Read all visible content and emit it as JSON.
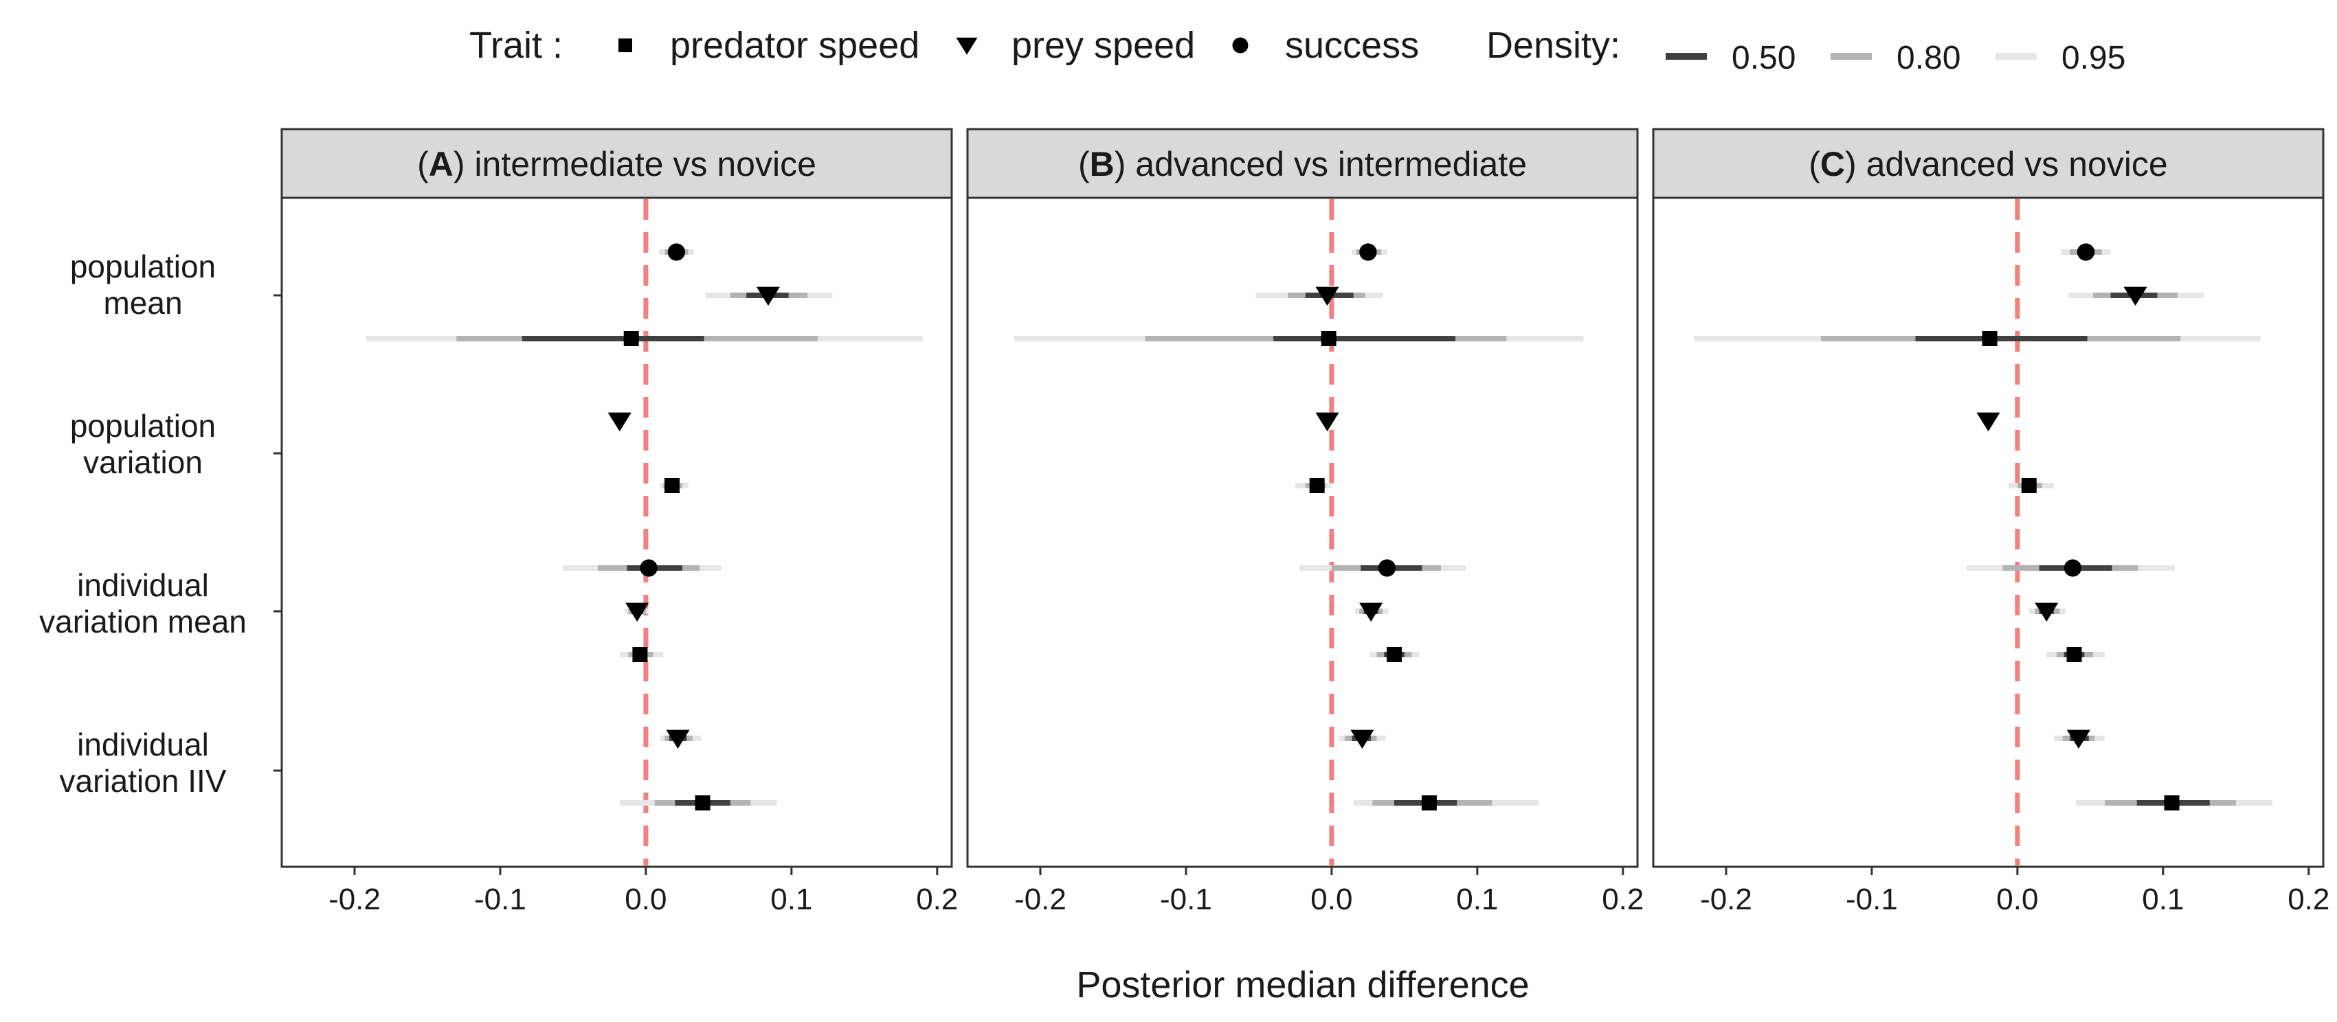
{
  "legend": {
    "trait_title": "Trait :",
    "density_title": "Density:",
    "traits": [
      {
        "key": "predator",
        "label": "predator speed",
        "shape": "square"
      },
      {
        "key": "prey",
        "label": "prey speed",
        "shape": "triangle-down"
      },
      {
        "key": "success",
        "label": "success",
        "shape": "circle"
      }
    ],
    "densities": [
      {
        "label": "0.50",
        "color": "#404040"
      },
      {
        "label": "0.80",
        "color": "#b3b3b3"
      },
      {
        "label": "0.95",
        "color": "#e6e6e6"
      }
    ]
  },
  "colors": {
    "zero_line": "#f28080",
    "strip_bg": "#d9d9d9",
    "point": "#000000"
  },
  "chart_data": {
    "type": "forest",
    "xlabel": "Posterior median difference",
    "xlim": [
      -0.25,
      0.21
    ],
    "xticks": [
      -0.2,
      -0.1,
      0.0,
      0.1,
      0.2
    ],
    "xtick_labels": [
      "-0.2",
      "-0.1",
      "0.0",
      "0.1",
      "0.2"
    ],
    "reference_line": 0,
    "groups": [
      {
        "key": "pop_mean",
        "label": [
          "population",
          "mean"
        ]
      },
      {
        "key": "pop_var",
        "label": [
          "population",
          "variation"
        ]
      },
      {
        "key": "ind_mean",
        "label": [
          "individual",
          "variation mean"
        ]
      },
      {
        "key": "ind_iiv",
        "label": [
          "individual",
          "variation IIV"
        ]
      }
    ],
    "panels": [
      {
        "id": "A",
        "title_letter": "A",
        "title_text": "intermediate vs novice",
        "estimates": [
          {
            "group": "pop_mean",
            "trait": "success",
            "median": 0.021,
            "i50": [
              0.016,
              0.026
            ],
            "i80": [
              0.013,
              0.029
            ],
            "i95": [
              0.009,
              0.033
            ]
          },
          {
            "group": "pop_mean",
            "trait": "prey",
            "median": 0.084,
            "i50": [
              0.069,
              0.098
            ],
            "i80": [
              0.058,
              0.111
            ],
            "i95": [
              0.041,
              0.128
            ]
          },
          {
            "group": "pop_mean",
            "trait": "predator",
            "median": -0.01,
            "i50": [
              -0.085,
              0.04
            ],
            "i80": [
              -0.13,
              0.118
            ],
            "i95": [
              -0.192,
              0.19
            ]
          },
          {
            "group": "pop_var",
            "trait": "prey",
            "median": -0.018
          },
          {
            "group": "pop_var",
            "trait": "predator",
            "median": 0.018,
            "i50": [
              0.014,
              0.022
            ],
            "i80": [
              0.012,
              0.025
            ],
            "i95": [
              0.01,
              0.029
            ]
          },
          {
            "group": "ind_mean",
            "trait": "success",
            "median": 0.002,
            "i50": [
              -0.013,
              0.025
            ],
            "i80": [
              -0.033,
              0.037
            ],
            "i95": [
              -0.057,
              0.052
            ]
          },
          {
            "group": "ind_mean",
            "trait": "prey",
            "median": -0.006,
            "i50": [
              -0.01,
              -0.002
            ],
            "i80": [
              -0.012,
              0.0
            ],
            "i95": [
              -0.014,
              0.002
            ]
          },
          {
            "group": "ind_mean",
            "trait": "predator",
            "median": -0.004,
            "i50": [
              -0.008,
              0.001
            ],
            "i80": [
              -0.012,
              0.005
            ],
            "i95": [
              -0.018,
              0.012
            ]
          },
          {
            "group": "ind_iiv",
            "trait": "prey",
            "median": 0.022,
            "i50": [
              0.016,
              0.028
            ],
            "i80": [
              0.013,
              0.032
            ],
            "i95": [
              0.01,
              0.038
            ]
          },
          {
            "group": "ind_iiv",
            "trait": "predator",
            "median": 0.039,
            "i50": [
              0.02,
              0.058
            ],
            "i80": [
              0.006,
              0.072
            ],
            "i95": [
              -0.018,
              0.09
            ]
          }
        ]
      },
      {
        "id": "B",
        "title_letter": "B",
        "title_text": "advanced vs intermediate",
        "estimates": [
          {
            "group": "pop_mean",
            "trait": "success",
            "median": 0.025,
            "i50": [
              0.02,
              0.03
            ],
            "i80": [
              0.017,
              0.034
            ],
            "i95": [
              0.014,
              0.038
            ]
          },
          {
            "group": "pop_mean",
            "trait": "prey",
            "median": -0.003,
            "i50": [
              -0.018,
              0.015
            ],
            "i80": [
              -0.03,
              0.023
            ],
            "i95": [
              -0.052,
              0.035
            ]
          },
          {
            "group": "pop_mean",
            "trait": "predator",
            "median": -0.002,
            "i50": [
              -0.04,
              0.085
            ],
            "i80": [
              -0.128,
              0.12
            ],
            "i95": [
              -0.218,
              0.173
            ]
          },
          {
            "group": "pop_var",
            "trait": "prey",
            "median": -0.003
          },
          {
            "group": "pop_var",
            "trait": "predator",
            "median": -0.01,
            "i50": [
              -0.014,
              -0.006
            ],
            "i80": [
              -0.018,
              -0.004
            ],
            "i95": [
              -0.025,
              0.0
            ]
          },
          {
            "group": "ind_mean",
            "trait": "success",
            "median": 0.038,
            "i50": [
              0.02,
              0.062
            ],
            "i80": [
              0.0,
              0.075
            ],
            "i95": [
              -0.022,
              0.092
            ]
          },
          {
            "group": "ind_mean",
            "trait": "prey",
            "median": 0.027,
            "i50": [
              0.022,
              0.032
            ],
            "i80": [
              0.019,
              0.035
            ],
            "i95": [
              0.016,
              0.039
            ]
          },
          {
            "group": "ind_mean",
            "trait": "predator",
            "median": 0.043,
            "i50": [
              0.036,
              0.05
            ],
            "i80": [
              0.031,
              0.055
            ],
            "i95": [
              0.026,
              0.06
            ]
          },
          {
            "group": "ind_iiv",
            "trait": "prey",
            "median": 0.021,
            "i50": [
              0.014,
              0.027
            ],
            "i80": [
              0.009,
              0.031
            ],
            "i95": [
              0.005,
              0.037
            ]
          },
          {
            "group": "ind_iiv",
            "trait": "predator",
            "median": 0.067,
            "i50": [
              0.043,
              0.086
            ],
            "i80": [
              0.028,
              0.11
            ],
            "i95": [
              0.015,
              0.142
            ]
          }
        ]
      },
      {
        "id": "C",
        "title_letter": "C",
        "title_text": "advanced vs novice",
        "estimates": [
          {
            "group": "pop_mean",
            "trait": "success",
            "median": 0.047,
            "i50": [
              0.041,
              0.053
            ],
            "i80": [
              0.036,
              0.058
            ],
            "i95": [
              0.03,
              0.064
            ]
          },
          {
            "group": "pop_mean",
            "trait": "prey",
            "median": 0.081,
            "i50": [
              0.064,
              0.096
            ],
            "i80": [
              0.052,
              0.11
            ],
            "i95": [
              0.035,
              0.128
            ]
          },
          {
            "group": "pop_mean",
            "trait": "predator",
            "median": -0.019,
            "i50": [
              -0.07,
              0.048
            ],
            "i80": [
              -0.135,
              0.112
            ],
            "i95": [
              -0.222,
              0.167
            ]
          },
          {
            "group": "pop_var",
            "trait": "prey",
            "median": -0.02
          },
          {
            "group": "pop_var",
            "trait": "predator",
            "median": 0.008,
            "i50": [
              0.004,
              0.012
            ],
            "i80": [
              0.0,
              0.017
            ],
            "i95": [
              -0.006,
              0.025
            ]
          },
          {
            "group": "ind_mean",
            "trait": "success",
            "median": 0.038,
            "i50": [
              0.015,
              0.065
            ],
            "i80": [
              -0.01,
              0.083
            ],
            "i95": [
              -0.035,
              0.108
            ]
          },
          {
            "group": "ind_mean",
            "trait": "prey",
            "median": 0.02,
            "i50": [
              0.015,
              0.025
            ],
            "i80": [
              0.012,
              0.029
            ],
            "i95": [
              0.008,
              0.033
            ]
          },
          {
            "group": "ind_mean",
            "trait": "predator",
            "median": 0.039,
            "i50": [
              0.032,
              0.046
            ],
            "i80": [
              0.027,
              0.052
            ],
            "i95": [
              0.02,
              0.06
            ]
          },
          {
            "group": "ind_iiv",
            "trait": "prey",
            "median": 0.042,
            "i50": [
              0.036,
              0.049
            ],
            "i80": [
              0.031,
              0.053
            ],
            "i95": [
              0.025,
              0.06
            ]
          },
          {
            "group": "ind_iiv",
            "trait": "predator",
            "median": 0.106,
            "i50": [
              0.082,
              0.132
            ],
            "i80": [
              0.06,
              0.15
            ],
            "i95": [
              0.04,
              0.175
            ]
          }
        ]
      }
    ]
  }
}
